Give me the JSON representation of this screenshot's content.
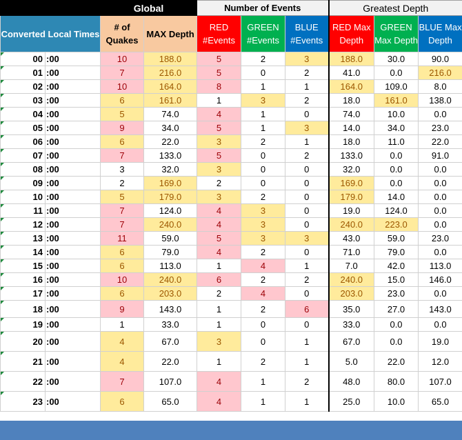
{
  "header": {
    "global": "Global",
    "number_of_events": "Number of Events",
    "greatest_depth": "Greatest Depth",
    "converted_local_times": "Converted Local Times",
    "num_quakes": "# of Quakes",
    "max_depth": "MAX Depth",
    "red_events": "RED #Events",
    "green_events": "GREEN #Events",
    "blue_events": "BLUE #Events",
    "red_max_depth": "RED Max Depth",
    "green_max_depth": "GREEN Max Depth",
    "blue_max_depth": "BLUE Max Depth"
  },
  "minute_suffix": ":00",
  "colors": {
    "global_header": "#000000",
    "converted_header": "#2e88b4",
    "quakes_header": "#f8c9a0",
    "red": "#ff0000",
    "green": "#00b050",
    "blue": "#0070c0",
    "highlight_pink": "#ffc7ce",
    "highlight_yellow": "#ffeb9c",
    "footer": "#4f81bd"
  },
  "rows": [
    {
      "hour": "00",
      "quakes": "10",
      "max_depth": "188.0",
      "red": "5",
      "green": "2",
      "blue": "3",
      "red_max": "188.0",
      "green_max": "30.0",
      "blue_max": "90.0",
      "hl": [
        "p",
        "y",
        "p",
        "",
        "y",
        "y",
        "",
        ""
      ]
    },
    {
      "hour": "01",
      "quakes": "7",
      "max_depth": "216.0",
      "red": "5",
      "green": "0",
      "blue": "2",
      "red_max": "41.0",
      "green_max": "0.0",
      "blue_max": "216.0",
      "hl": [
        "p",
        "y",
        "p",
        "",
        "",
        "",
        "",
        "y"
      ]
    },
    {
      "hour": "02",
      "quakes": "10",
      "max_depth": "164.0",
      "red": "8",
      "green": "1",
      "blue": "1",
      "red_max": "164.0",
      "green_max": "109.0",
      "blue_max": "8.0",
      "hl": [
        "p",
        "y",
        "p",
        "",
        "",
        "y",
        "",
        ""
      ]
    },
    {
      "hour": "03",
      "quakes": "6",
      "max_depth": "161.0",
      "red": "1",
      "green": "3",
      "blue": "2",
      "red_max": "18.0",
      "green_max": "161.0",
      "blue_max": "138.0",
      "hl": [
        "y",
        "y",
        "",
        "y",
        "",
        "",
        "y",
        ""
      ]
    },
    {
      "hour": "04",
      "quakes": "5",
      "max_depth": "74.0",
      "red": "4",
      "green": "1",
      "blue": "0",
      "red_max": "74.0",
      "green_max": "10.0",
      "blue_max": "0.0",
      "hl": [
        "y",
        "",
        "p",
        "",
        "",
        "",
        "",
        ""
      ]
    },
    {
      "hour": "05",
      "quakes": "9",
      "max_depth": "34.0",
      "red": "5",
      "green": "1",
      "blue": "3",
      "red_max": "14.0",
      "green_max": "34.0",
      "blue_max": "23.0",
      "hl": [
        "p",
        "",
        "p",
        "",
        "y",
        "",
        "",
        ""
      ]
    },
    {
      "hour": "06",
      "quakes": "6",
      "max_depth": "22.0",
      "red": "3",
      "green": "2",
      "blue": "1",
      "red_max": "18.0",
      "green_max": "11.0",
      "blue_max": "22.0",
      "hl": [
        "y",
        "",
        "y",
        "",
        "",
        "",
        "",
        ""
      ]
    },
    {
      "hour": "07",
      "quakes": "7",
      "max_depth": "133.0",
      "red": "5",
      "green": "0",
      "blue": "2",
      "red_max": "133.0",
      "green_max": "0.0",
      "blue_max": "91.0",
      "hl": [
        "p",
        "",
        "p",
        "",
        "",
        "",
        "",
        ""
      ]
    },
    {
      "hour": "08",
      "quakes": "3",
      "max_depth": "32.0",
      "red": "3",
      "green": "0",
      "blue": "0",
      "red_max": "32.0",
      "green_max": "0.0",
      "blue_max": "0.0",
      "hl": [
        "",
        "",
        "y",
        "",
        "",
        "",
        "",
        ""
      ]
    },
    {
      "hour": "09",
      "quakes": "2",
      "max_depth": "169.0",
      "red": "2",
      "green": "0",
      "blue": "0",
      "red_max": "169.0",
      "green_max": "0.0",
      "blue_max": "0.0",
      "hl": [
        "",
        "y",
        "",
        "",
        "",
        "y",
        "",
        ""
      ]
    },
    {
      "hour": "10",
      "quakes": "5",
      "max_depth": "179.0",
      "red": "3",
      "green": "2",
      "blue": "0",
      "red_max": "179.0",
      "green_max": "14.0",
      "blue_max": "0.0",
      "hl": [
        "y",
        "y",
        "y",
        "",
        "",
        "y",
        "",
        ""
      ]
    },
    {
      "hour": "11",
      "quakes": "7",
      "max_depth": "124.0",
      "red": "4",
      "green": "3",
      "blue": "0",
      "red_max": "19.0",
      "green_max": "124.0",
      "blue_max": "0.0",
      "hl": [
        "p",
        "",
        "p",
        "y",
        "",
        "",
        "",
        ""
      ]
    },
    {
      "hour": "12",
      "quakes": "7",
      "max_depth": "240.0",
      "red": "4",
      "green": "3",
      "blue": "0",
      "red_max": "240.0",
      "green_max": "223.0",
      "blue_max": "0.0",
      "hl": [
        "p",
        "y",
        "p",
        "y",
        "",
        "y",
        "y",
        ""
      ]
    },
    {
      "hour": "13",
      "quakes": "11",
      "max_depth": "59.0",
      "red": "5",
      "green": "3",
      "blue": "3",
      "red_max": "43.0",
      "green_max": "59.0",
      "blue_max": "23.0",
      "hl": [
        "p",
        "",
        "p",
        "y",
        "y",
        "",
        "",
        ""
      ]
    },
    {
      "hour": "14",
      "quakes": "6",
      "max_depth": "79.0",
      "red": "4",
      "green": "2",
      "blue": "0",
      "red_max": "71.0",
      "green_max": "79.0",
      "blue_max": "0.0",
      "hl": [
        "y",
        "",
        "p",
        "",
        "",
        "",
        "",
        ""
      ]
    },
    {
      "hour": "15",
      "quakes": "6",
      "max_depth": "113.0",
      "red": "1",
      "green": "4",
      "blue": "1",
      "red_max": "7.0",
      "green_max": "42.0",
      "blue_max": "113.0",
      "hl": [
        "y",
        "",
        "",
        "p",
        "",
        "",
        "",
        ""
      ]
    },
    {
      "hour": "16",
      "quakes": "10",
      "max_depth": "240.0",
      "red": "6",
      "green": "2",
      "blue": "2",
      "red_max": "240.0",
      "green_max": "15.0",
      "blue_max": "146.0",
      "hl": [
        "p",
        "y",
        "p",
        "",
        "",
        "y",
        "",
        ""
      ]
    },
    {
      "hour": "17",
      "quakes": "6",
      "max_depth": "203.0",
      "red": "2",
      "green": "4",
      "blue": "0",
      "red_max": "203.0",
      "green_max": "23.0",
      "blue_max": "0.0",
      "hl": [
        "y",
        "y",
        "",
        "p",
        "",
        "y",
        "",
        ""
      ]
    },
    {
      "hour": "18",
      "quakes": "9",
      "max_depth": "143.0",
      "red": "1",
      "green": "2",
      "blue": "6",
      "red_max": "35.0",
      "green_max": "27.0",
      "blue_max": "143.0",
      "hl": [
        "p",
        "",
        "",
        "",
        "p",
        "",
        "",
        ""
      ]
    },
    {
      "hour": "19",
      "quakes": "1",
      "max_depth": "33.0",
      "red": "1",
      "green": "0",
      "blue": "0",
      "red_max": "33.0",
      "green_max": "0.0",
      "blue_max": "0.0",
      "hl": [
        "",
        "",
        "",
        "",
        "",
        "",
        "",
        ""
      ]
    },
    {
      "hour": "20",
      "quakes": "4",
      "max_depth": "67.0",
      "red": "3",
      "green": "0",
      "blue": "1",
      "red_max": "67.0",
      "green_max": "0.0",
      "blue_max": "19.0",
      "hl": [
        "y",
        "",
        "y",
        "",
        "",
        "",
        "",
        ""
      ]
    },
    {
      "hour": "21",
      "quakes": "4",
      "max_depth": "22.0",
      "red": "1",
      "green": "2",
      "blue": "1",
      "red_max": "5.0",
      "green_max": "22.0",
      "blue_max": "12.0",
      "hl": [
        "y",
        "",
        "",
        "",
        "",
        "",
        "",
        ""
      ]
    },
    {
      "hour": "22",
      "quakes": "7",
      "max_depth": "107.0",
      "red": "4",
      "green": "1",
      "blue": "2",
      "red_max": "48.0",
      "green_max": "80.0",
      "blue_max": "107.0",
      "hl": [
        "p",
        "",
        "p",
        "",
        "",
        "",
        "",
        ""
      ]
    },
    {
      "hour": "23",
      "quakes": "6",
      "max_depth": "65.0",
      "red": "4",
      "green": "1",
      "blue": "1",
      "red_max": "25.0",
      "green_max": "10.0",
      "blue_max": "65.0",
      "hl": [
        "y",
        "",
        "p",
        "",
        "",
        "",
        "",
        ""
      ]
    }
  ]
}
